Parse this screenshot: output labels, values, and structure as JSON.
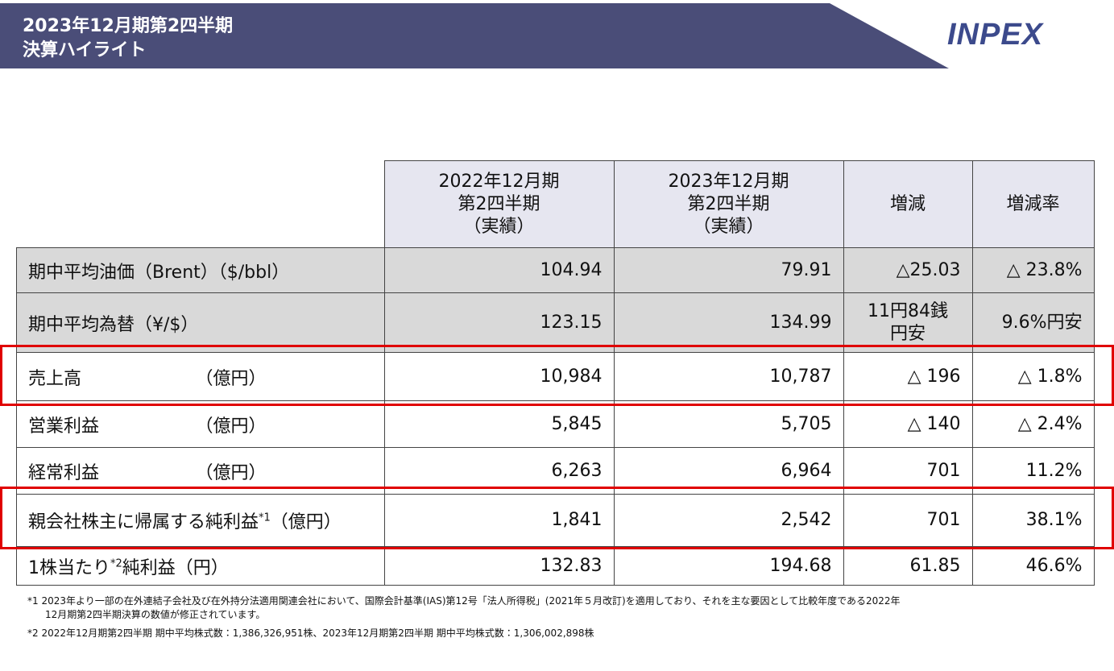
{
  "header": {
    "title_lines": [
      "2023年12月期第2四半期",
      "決算ハイライト"
    ],
    "logo": "INPEX"
  },
  "table": {
    "columns": [
      [
        "2022年12月期",
        "第2四半期",
        "（実績）"
      ],
      [
        "2023年12月期",
        "第2四半期",
        "（実績）"
      ],
      [
        "増減"
      ],
      [
        "増減率"
      ]
    ],
    "rows": [
      {
        "label": [
          "期中平均油価（Brent）（$/bbl）"
        ],
        "cells": [
          [
            "104.94"
          ],
          [
            "79.91"
          ],
          [
            "△25.03"
          ],
          [
            "△ 23.8%"
          ]
        ]
      },
      {
        "label": [
          "期中平均為替（¥/$）"
        ],
        "cells": [
          [
            "123.15"
          ],
          [
            "134.99"
          ],
          [
            "11円84銭",
            "円安"
          ],
          [
            "9.6%円安"
          ]
        ]
      },
      {
        "label": [
          "売上高"
        ],
        "unit": "（億円）",
        "cells": [
          [
            "10,984"
          ],
          [
            "10,787"
          ],
          [
            "△ 196"
          ],
          [
            "△ 1.8%"
          ]
        ]
      },
      {
        "label": [
          "営業利益"
        ],
        "unit": "（億円）",
        "cells": [
          [
            "5,845"
          ],
          [
            "5,705"
          ],
          [
            "△ 140"
          ],
          [
            "△ 2.4%"
          ]
        ]
      },
      {
        "label": [
          "経常利益"
        ],
        "unit": "（億円）",
        "cells": [
          [
            "6,263"
          ],
          [
            "6,964"
          ],
          [
            "701"
          ],
          [
            "11.2%"
          ]
        ]
      },
      {
        "label": [
          "親会社株主に帰属する純利益",
          "*1",
          "（億円）"
        ],
        "cells": [
          [
            "1,841"
          ],
          [
            "2,542"
          ],
          [
            "701"
          ],
          [
            "38.1%"
          ]
        ]
      },
      {
        "label": [
          "1株当たり",
          "*2",
          "純利益（円）"
        ],
        "cells": [
          [
            "132.83"
          ],
          [
            "194.68"
          ],
          [
            "61.85"
          ],
          [
            "46.6%"
          ]
        ]
      }
    ]
  },
  "footnotes": [
    [
      "*1 2023年より一部の在外連結子会社及び在外持分法適用関連会社において、国際会計基準(IAS)第12号「法人所得税」(2021年５月改訂)を適用しており、それを主な要因として比較年度である2022年",
      "12月期第2四半期決算の数値が修正されています。"
    ],
    [
      "*2 2022年12月期第2四半期 期中平均株式数：1,386,326,951株、2023年12月期第2四半期 期中平均株式数：1,306,002,898株"
    ]
  ]
}
